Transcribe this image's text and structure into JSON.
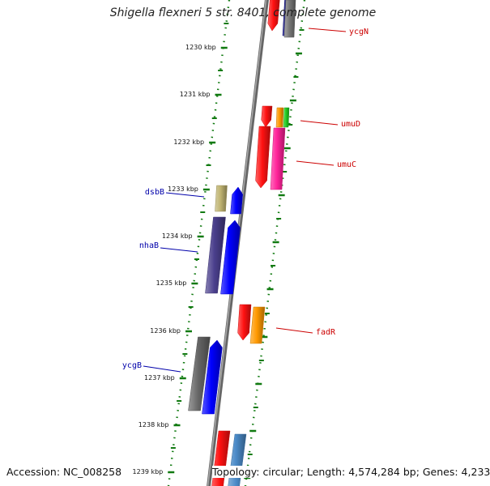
{
  "title": "Shigella flexneri 5 str. 8401, complete genome",
  "accession": "Accession: NC_008258",
  "topology": "Topology: circular; Length: 4,574,284 bp; Genes: 4,233",
  "colors": {
    "backbone": "#7f7f7f",
    "tick_dots": "#117a11",
    "plus_label": "#cc0000",
    "minus_label": "#0000aa"
  },
  "ticks": [
    {
      "label": "1230 kbp"
    },
    {
      "label": "1231 kbp"
    },
    {
      "label": "1232 kbp"
    },
    {
      "label": "1233 kbp"
    },
    {
      "label": "1234 kbp"
    },
    {
      "label": "1235 kbp"
    },
    {
      "label": "1236 kbp"
    },
    {
      "label": "1237 kbp"
    },
    {
      "label": "1238 kbp"
    },
    {
      "label": "1239 kbp"
    }
  ],
  "genes": [
    {
      "name": "ycgN",
      "strand": "+",
      "color": "#ff1111"
    },
    {
      "name": "",
      "strand": "+",
      "color": "#00007a"
    },
    {
      "name": "",
      "strand": "+",
      "color": "#777777"
    },
    {
      "name": "",
      "strand": "+",
      "color": "#ff1111"
    },
    {
      "name": "umuD",
      "strand": "+",
      "color": "#ff9900"
    },
    {
      "name": "",
      "strand": "+",
      "color": "#22cc22"
    },
    {
      "name": "",
      "strand": "+",
      "color": "#ff1111"
    },
    {
      "name": "umuC",
      "strand": "+",
      "color": "#ff2299"
    },
    {
      "name": "dsbB",
      "strand": "-",
      "color": "#bfb370"
    },
    {
      "name": "",
      "strand": "-",
      "color": "#0000ff"
    },
    {
      "name": "nhaB",
      "strand": "-",
      "color": "#4a3f8c"
    },
    {
      "name": "",
      "strand": "-",
      "color": "#0000ff"
    },
    {
      "name": "",
      "strand": "+",
      "color": "#ff1111"
    },
    {
      "name": "fadR",
      "strand": "+",
      "color": "#ff9900"
    },
    {
      "name": "",
      "strand": "-",
      "color": "#666666"
    },
    {
      "name": "ycgB",
      "strand": "-",
      "color": "#0000ff"
    },
    {
      "name": "",
      "strand": "+",
      "color": "#ff1111"
    },
    {
      "name": "",
      "strand": "+",
      "color": "#4b8bc8"
    }
  ]
}
